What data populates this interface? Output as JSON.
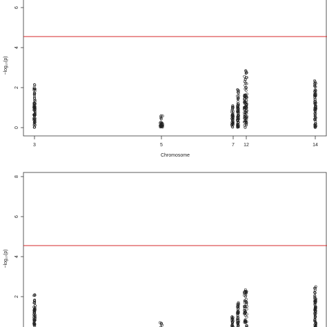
{
  "colors": {
    "threshold": "#d62728",
    "axis": "#333333",
    "point": "#222222"
  },
  "chart_data": [
    {
      "type": "scatter",
      "title": "",
      "xlabel": "Chromosome",
      "ylabel": "-log10(p)",
      "ylabel_display": "−log₁₀(p)",
      "x_ticks": [
        "3",
        "5",
        "7",
        "12",
        "14"
      ],
      "y_ticks": [
        "0",
        "2",
        "4",
        "6"
      ],
      "ylim": [
        -0.8,
        8.6
      ],
      "threshold": 4.55,
      "grid": false,
      "series": [
        {
          "chromosome": "3",
          "max": 2.15,
          "dense_max": 1.5
        },
        {
          "chromosome": "5",
          "max": 0.6,
          "dense_max": 0.3
        },
        {
          "chromosome": "7",
          "max": 1.1,
          "dense_max": 0.8
        },
        {
          "chromosome": "7b",
          "max": 1.9,
          "dense_max": 1.2
        },
        {
          "chromosome": "12",
          "max": 2.85,
          "dense_max": 1.7
        },
        {
          "chromosome": "14",
          "max": 2.35,
          "dense_max": 1.8
        }
      ]
    },
    {
      "type": "scatter",
      "title": "",
      "xlabel": "",
      "ylabel": "-log10(p)",
      "ylabel_display": "−log₁₀(p)",
      "x_ticks": [],
      "y_ticks": [
        "2",
        "4",
        "6",
        "8"
      ],
      "ylim": [
        -0.5,
        8.4
      ],
      "threshold": 4.55,
      "grid": false,
      "series": [
        {
          "chromosome": "3",
          "max": 2.1,
          "dense_max": 1.4
        },
        {
          "chromosome": "5",
          "max": 0.7,
          "dense_max": 0.4
        },
        {
          "chromosome": "7",
          "max": 1.0,
          "dense_max": 0.8
        },
        {
          "chromosome": "7b",
          "max": 1.7,
          "dense_max": 1.3
        },
        {
          "chromosome": "12",
          "max": 2.35,
          "dense_max": 1.8
        },
        {
          "chromosome": "14",
          "max": 2.5,
          "dense_max": 1.8
        }
      ]
    }
  ]
}
